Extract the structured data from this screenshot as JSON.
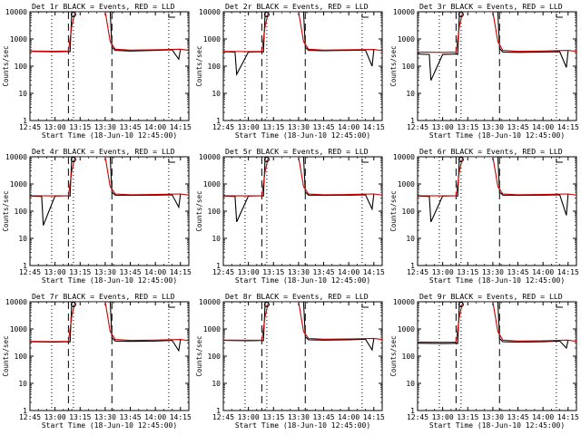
{
  "chart_data": [
    {
      "type": "line",
      "title": "Det 1r BLACK = Events, RED = LLD",
      "xlabel": "Start Time (18-Jun-10 12:45:00)",
      "ylabel": "Counts/sec",
      "x_tick_labels": [
        "12:45",
        "13:00",
        "13:15",
        "13:30",
        "13:45",
        "14:00",
        "14:15"
      ],
      "y_tick_labels": [
        "1",
        "10",
        "100",
        "1000",
        "10000"
      ],
      "ylim": [
        1,
        10000
      ],
      "yscale": "log",
      "series": [
        {
          "name": "Events",
          "color": "#000000",
          "x": [
            "12:45",
            "13:00",
            "13:05",
            "13:08",
            "13:09",
            "13:10",
            "13:33",
            "13:34",
            "13:36",
            "13:45",
            "14:00",
            "14:10",
            "14:14",
            "14:15"
          ],
          "y": [
            350,
            340,
            345,
            350,
            340,
            10000,
            10000,
            500,
            380,
            360,
            380,
            400,
            180,
            420
          ]
        },
        {
          "name": "LLD",
          "color": "#cc0000",
          "x": [
            "12:45",
            "13:00",
            "13:08",
            "13:10",
            "13:12",
            "13:30",
            "13:33",
            "13:36",
            "13:45",
            "14:00",
            "14:15",
            "14:20"
          ],
          "y": [
            360,
            355,
            360,
            3000,
            10000,
            10000,
            800,
            420,
            390,
            400,
            420,
            380
          ]
        }
      ],
      "vertical_lines_dotted": [
        "12:58",
        "13:11",
        "14:08"
      ],
      "vertical_lines_dashed": [
        "13:08",
        "13:34"
      ]
    },
    {
      "type": "line",
      "title": "Det 2r BLACK = Events, RED = LLD",
      "xlabel": "Start Time (18-Jun-10 12:45:00)",
      "ylabel": "Counts/sec",
      "x_tick_labels": [
        "12:45",
        "13:00",
        "13:15",
        "13:30",
        "13:45",
        "14:00",
        "14:15"
      ],
      "y_tick_labels": [
        "1",
        "10",
        "100",
        "1000",
        "10000"
      ],
      "ylim": [
        1,
        10000
      ],
      "yscale": "log",
      "series": [
        {
          "name": "Events",
          "color": "#000000",
          "x": [
            "12:45",
            "12:52",
            "12:53",
            "13:00",
            "13:08",
            "13:09",
            "13:10",
            "13:33",
            "13:34",
            "13:36",
            "13:45",
            "14:00",
            "14:10",
            "14:14",
            "14:15"
          ],
          "y": [
            340,
            330,
            50,
            330,
            340,
            330,
            10000,
            10000,
            500,
            380,
            370,
            380,
            390,
            100,
            400
          ]
        },
        {
          "name": "LLD",
          "color": "#cc0000",
          "x": [
            "12:45",
            "13:00",
            "13:08",
            "13:10",
            "13:12",
            "13:30",
            "13:33",
            "13:36",
            "13:45",
            "14:00",
            "14:15",
            "14:20"
          ],
          "y": [
            350,
            345,
            350,
            3000,
            10000,
            10000,
            800,
            420,
            390,
            400,
            410,
            370
          ]
        }
      ],
      "vertical_lines_dotted": [
        "12:58",
        "13:11",
        "14:08"
      ],
      "vertical_lines_dashed": [
        "13:08",
        "13:34"
      ]
    },
    {
      "type": "line",
      "title": "Det 3r BLACK = Events, RED = LLD",
      "xlabel": "Start Time (18-Jun-10 12:45:00)",
      "ylabel": "Counts/sec",
      "x_tick_labels": [
        "12:45",
        "13:00",
        "13:15",
        "13:30",
        "13:45",
        "14:00",
        "14:15"
      ],
      "y_tick_labels": [
        "1",
        "10",
        "100",
        "1000",
        "10000"
      ],
      "ylim": [
        1,
        10000
      ],
      "yscale": "log",
      "series": [
        {
          "name": "Events",
          "color": "#000000",
          "x": [
            "12:45",
            "12:52",
            "12:53",
            "13:00",
            "13:08",
            "13:09",
            "13:10",
            "13:33",
            "13:34",
            "13:36",
            "13:45",
            "14:00",
            "14:10",
            "14:14",
            "14:15"
          ],
          "y": [
            280,
            270,
            30,
            270,
            280,
            270,
            10000,
            10000,
            450,
            330,
            320,
            330,
            340,
            90,
            360
          ]
        },
        {
          "name": "LLD",
          "color": "#cc0000",
          "x": [
            "12:45",
            "13:00",
            "13:08",
            "13:10",
            "13:12",
            "13:30",
            "13:33",
            "13:36",
            "13:45",
            "14:00",
            "14:15",
            "14:20"
          ],
          "y": [
            330,
            320,
            330,
            3000,
            10000,
            10000,
            800,
            380,
            350,
            360,
            380,
            350
          ]
        }
      ],
      "vertical_lines_dotted": [
        "12:58",
        "13:11",
        "14:08"
      ],
      "vertical_lines_dashed": [
        "13:08",
        "13:34"
      ]
    },
    {
      "type": "line",
      "title": "Det 4r BLACK = Events, RED = LLD",
      "xlabel": "Start Time (18-Jun-10 12:45:00)",
      "ylabel": "Counts/sec",
      "x_tick_labels": [
        "12:45",
        "13:00",
        "13:15",
        "13:30",
        "13:45",
        "14:00",
        "14:15"
      ],
      "y_tick_labels": [
        "1",
        "10",
        "100",
        "1000",
        "10000"
      ],
      "ylim": [
        1,
        10000
      ],
      "yscale": "log",
      "series": [
        {
          "name": "Events",
          "color": "#000000",
          "x": [
            "12:45",
            "12:52",
            "12:53",
            "13:00",
            "13:08",
            "13:09",
            "13:10",
            "13:33",
            "13:34",
            "13:36",
            "13:45",
            "14:00",
            "14:10",
            "14:14",
            "14:15"
          ],
          "y": [
            360,
            350,
            30,
            360,
            370,
            360,
            10000,
            10000,
            500,
            390,
            380,
            390,
            400,
            140,
            420
          ]
        },
        {
          "name": "LLD",
          "color": "#cc0000",
          "x": [
            "12:45",
            "13:00",
            "13:08",
            "13:10",
            "13:12",
            "13:30",
            "13:33",
            "13:36",
            "13:45",
            "14:00",
            "14:15",
            "14:20"
          ],
          "y": [
            370,
            365,
            370,
            3000,
            10000,
            10000,
            800,
            430,
            400,
            410,
            430,
            390
          ]
        }
      ],
      "vertical_lines_dotted": [
        "12:58",
        "13:11",
        "14:08"
      ],
      "vertical_lines_dashed": [
        "13:08",
        "13:34"
      ]
    },
    {
      "type": "line",
      "title": "Det 5r BLACK = Events, RED = LLD",
      "xlabel": "Start Time (18-Jun-10 12:45:00)",
      "ylabel": "Counts/sec",
      "x_tick_labels": [
        "12:45",
        "13:00",
        "13:15",
        "13:30",
        "13:45",
        "14:00",
        "14:15"
      ],
      "y_tick_labels": [
        "1",
        "10",
        "100",
        "1000",
        "10000"
      ],
      "ylim": [
        1,
        10000
      ],
      "yscale": "log",
      "series": [
        {
          "name": "Events",
          "color": "#000000",
          "x": [
            "12:45",
            "12:52",
            "12:53",
            "13:00",
            "13:08",
            "13:09",
            "13:10",
            "13:33",
            "13:34",
            "13:36",
            "13:45",
            "14:00",
            "14:10",
            "14:14",
            "14:15"
          ],
          "y": [
            360,
            350,
            40,
            360,
            370,
            360,
            10000,
            10000,
            500,
            390,
            380,
            390,
            400,
            120,
            420
          ]
        },
        {
          "name": "LLD",
          "color": "#cc0000",
          "x": [
            "12:45",
            "13:00",
            "13:08",
            "13:10",
            "13:12",
            "13:30",
            "13:33",
            "13:36",
            "13:45",
            "14:00",
            "14:15",
            "14:20"
          ],
          "y": [
            370,
            365,
            370,
            3000,
            10000,
            10000,
            800,
            430,
            400,
            410,
            430,
            390
          ]
        }
      ],
      "vertical_lines_dotted": [
        "12:58",
        "13:11",
        "14:08"
      ],
      "vertical_lines_dashed": [
        "13:08",
        "13:34"
      ]
    },
    {
      "type": "line",
      "title": "Det 6r BLACK = Events, RED = LLD",
      "xlabel": "Start Time (18-Jun-10 12:45:00)",
      "ylabel": "Counts/sec",
      "x_tick_labels": [
        "12:45",
        "13:00",
        "13:15",
        "13:30",
        "13:45",
        "14:00",
        "14:15"
      ],
      "y_tick_labels": [
        "1",
        "10",
        "100",
        "1000",
        "10000"
      ],
      "ylim": [
        1,
        10000
      ],
      "yscale": "log",
      "series": [
        {
          "name": "Events",
          "color": "#000000",
          "x": [
            "12:45",
            "12:52",
            "12:53",
            "13:00",
            "13:08",
            "13:09",
            "13:10",
            "13:33",
            "13:34",
            "13:36",
            "13:45",
            "14:00",
            "14:10",
            "14:14",
            "14:15"
          ],
          "y": [
            360,
            350,
            40,
            360,
            370,
            360,
            10000,
            10000,
            500,
            390,
            380,
            390,
            400,
            70,
            420
          ]
        },
        {
          "name": "LLD",
          "color": "#cc0000",
          "x": [
            "12:45",
            "13:00",
            "13:08",
            "13:10",
            "13:12",
            "13:30",
            "13:33",
            "13:36",
            "13:45",
            "14:00",
            "14:15",
            "14:20"
          ],
          "y": [
            370,
            365,
            370,
            3000,
            10000,
            10000,
            800,
            430,
            400,
            410,
            430,
            390
          ]
        }
      ],
      "vertical_lines_dotted": [
        "12:58",
        "13:11",
        "14:08"
      ],
      "vertical_lines_dashed": [
        "13:08",
        "13:34"
      ]
    },
    {
      "type": "line",
      "title": "Det 7r BLACK = Events, RED = LLD",
      "xlabel": "Start Time (18-Jun-10 12:45:00)",
      "ylabel": "Counts/sec",
      "x_tick_labels": [
        "12:45",
        "13:00",
        "13:15",
        "13:30",
        "13:45",
        "14:00",
        "14:15"
      ],
      "y_tick_labels": [
        "1",
        "10",
        "100",
        "1000",
        "10000"
      ],
      "ylim": [
        1,
        10000
      ],
      "yscale": "log",
      "series": [
        {
          "name": "Events",
          "color": "#000000",
          "x": [
            "12:45",
            "13:00",
            "13:05",
            "13:08",
            "13:09",
            "13:10",
            "13:33",
            "13:34",
            "13:36",
            "13:45",
            "14:00",
            "14:10",
            "14:14",
            "14:15"
          ],
          "y": [
            340,
            330,
            335,
            340,
            330,
            10000,
            10000,
            480,
            360,
            350,
            360,
            380,
            160,
            400
          ]
        },
        {
          "name": "LLD",
          "color": "#cc0000",
          "x": [
            "12:45",
            "13:00",
            "13:08",
            "13:10",
            "13:12",
            "13:30",
            "13:33",
            "13:36",
            "13:45",
            "14:00",
            "14:15",
            "14:20"
          ],
          "y": [
            350,
            345,
            350,
            3000,
            10000,
            10000,
            800,
            410,
            380,
            390,
            410,
            370
          ]
        }
      ],
      "vertical_lines_dotted": [
        "12:58",
        "13:11",
        "14:08"
      ],
      "vertical_lines_dashed": [
        "13:08",
        "13:34"
      ]
    },
    {
      "type": "line",
      "title": "Det 8r BLACK = Events, RED = LLD",
      "xlabel": "Start Time (18-Jun-10 12:45:00)",
      "ylabel": "Counts/sec",
      "x_tick_labels": [
        "12:45",
        "13:00",
        "13:15",
        "13:30",
        "13:45",
        "14:00",
        "14:15"
      ],
      "y_tick_labels": [
        "1",
        "10",
        "100",
        "1000",
        "10000"
      ],
      "ylim": [
        1,
        10000
      ],
      "yscale": "log",
      "series": [
        {
          "name": "Events",
          "color": "#000000",
          "x": [
            "12:45",
            "13:00",
            "13:05",
            "13:08",
            "13:09",
            "13:10",
            "13:33",
            "13:34",
            "13:36",
            "13:45",
            "14:00",
            "14:10",
            "14:14",
            "14:15"
          ],
          "y": [
            380,
            370,
            375,
            380,
            370,
            10000,
            10000,
            520,
            400,
            390,
            400,
            420,
            170,
            440
          ]
        },
        {
          "name": "LLD",
          "color": "#cc0000",
          "x": [
            "12:45",
            "13:00",
            "13:08",
            "13:10",
            "13:12",
            "13:30",
            "13:33",
            "13:36",
            "13:45",
            "14:00",
            "14:15",
            "14:20"
          ],
          "y": [
            390,
            385,
            390,
            3000,
            10000,
            10000,
            800,
            450,
            420,
            430,
            450,
            410
          ]
        }
      ],
      "vertical_lines_dotted": [
        "12:58",
        "13:11",
        "14:08"
      ],
      "vertical_lines_dashed": [
        "13:08",
        "13:34"
      ]
    },
    {
      "type": "line",
      "title": "Det 9r BLACK = Events, RED = LLD",
      "xlabel": "Start Time (18-Jun-10 12:45:00)",
      "ylabel": "Counts/sec",
      "x_tick_labels": [
        "12:45",
        "13:00",
        "13:15",
        "13:30",
        "13:45",
        "14:00",
        "14:15"
      ],
      "y_tick_labels": [
        "1",
        "10",
        "100",
        "1000",
        "10000"
      ],
      "ylim": [
        1,
        10000
      ],
      "yscale": "log",
      "series": [
        {
          "name": "Events",
          "color": "#000000",
          "x": [
            "12:45",
            "13:00",
            "13:05",
            "13:08",
            "13:09",
            "13:10",
            "13:33",
            "13:34",
            "13:36",
            "13:45",
            "14:00",
            "14:10",
            "14:14",
            "14:15"
          ],
          "y": [
            300,
            290,
            295,
            300,
            290,
            10000,
            10000,
            450,
            340,
            330,
            340,
            360,
            200,
            380
          ]
        },
        {
          "name": "LLD",
          "color": "#cc0000",
          "x": [
            "12:45",
            "13:00",
            "13:08",
            "13:10",
            "13:12",
            "13:30",
            "13:33",
            "13:36",
            "13:45",
            "14:00",
            "14:15",
            "14:20"
          ],
          "y": [
            330,
            325,
            330,
            3000,
            10000,
            10000,
            800,
            390,
            360,
            370,
            390,
            350
          ]
        }
      ],
      "vertical_lines_dotted": [
        "12:58",
        "13:11",
        "14:08"
      ],
      "vertical_lines_dashed": [
        "13:08",
        "13:34"
      ]
    }
  ]
}
